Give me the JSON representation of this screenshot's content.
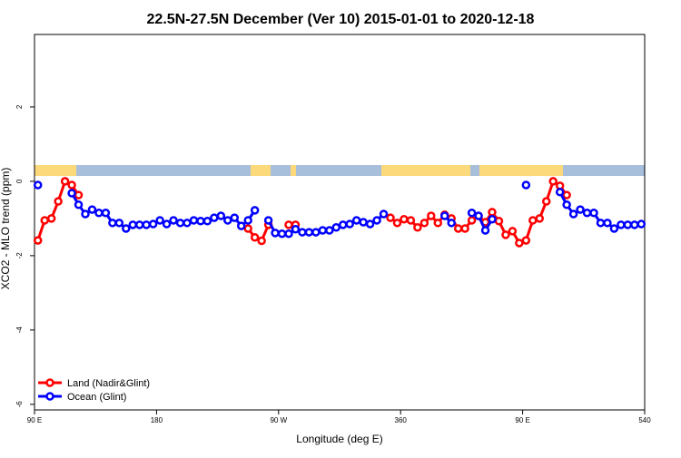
{
  "chart_data": {
    "type": "line",
    "title": "22.5N-27.5N December (Ver 10)   2015-01-01 to 2020-12-18",
    "x_label": "Longitude (deg E)",
    "y_label": "XCO2 - MLO trend (ppm)",
    "x": [
      92.5,
      97.5,
      102.5,
      107.5,
      112.5,
      117.5,
      122.5,
      127.5,
      132.5,
      137.5,
      142.5,
      147.5,
      152.5,
      157.5,
      162.5,
      167.5,
      172.5,
      177.5,
      182.5,
      187.5,
      192.5,
      197.5,
      202.5,
      207.5,
      212.5,
      217.5,
      222.5,
      227.5,
      232.5,
      237.5,
      242.5,
      247.5,
      252.5,
      257.5,
      262.5,
      267.5,
      272.5,
      277.5,
      282.5,
      287.5,
      292.5,
      297.5,
      302.5,
      307.5,
      312.5,
      317.5,
      322.5,
      327.5,
      332.5,
      337.5,
      342.5,
      347.5,
      352.5,
      357.5,
      362.5,
      367.5,
      372.5,
      377.5,
      382.5,
      387.5,
      392.5,
      397.5,
      402.5,
      407.5,
      412.5,
      417.5,
      422.5,
      427.5,
      432.5,
      437.5,
      442.5,
      447.5,
      452.5,
      457.5,
      462.5,
      467.5,
      472.5,
      477.5,
      482.5,
      487.5,
      492.5,
      497.5,
      502.5,
      507.5,
      512.5,
      517.5,
      522.5,
      527.5,
      532.5,
      537.5
    ],
    "series": [
      {
        "name": "Land (Nadir&Glint)",
        "color": "#ff0000",
        "values": [
          -1.59,
          -1.05,
          -1.0,
          -0.54,
          0.0,
          -0.1,
          -0.37,
          null,
          null,
          null,
          null,
          null,
          null,
          null,
          null,
          null,
          null,
          null,
          null,
          null,
          null,
          null,
          null,
          null,
          null,
          null,
          null,
          null,
          null,
          null,
          null,
          -1.27,
          -1.51,
          -1.6,
          -1.17,
          null,
          null,
          -1.17,
          -1.17,
          null,
          null,
          null,
          null,
          null,
          null,
          null,
          null,
          null,
          null,
          null,
          null,
          null,
          -0.98,
          -1.12,
          -1.02,
          -1.05,
          -1.24,
          -1.12,
          -0.93,
          -1.12,
          -0.9,
          -1.0,
          -1.27,
          -1.27,
          -1.05,
          -0.93,
          -1.1,
          -0.83,
          -1.07,
          -1.44,
          -1.34,
          -1.66,
          -1.59,
          -1.05,
          -1.0,
          -0.54,
          0.0,
          -0.12,
          -0.37,
          null,
          null,
          null,
          null,
          null,
          null,
          null,
          null,
          null,
          null,
          null
        ]
      },
      {
        "name": "Ocean (Glint)",
        "color": "#0000ff",
        "values": [
          -0.1,
          null,
          null,
          null,
          null,
          -0.32,
          -0.63,
          -0.88,
          -0.76,
          -0.85,
          -0.85,
          -1.12,
          -1.12,
          -1.27,
          -1.17,
          -1.17,
          -1.17,
          -1.15,
          -1.05,
          -1.15,
          -1.05,
          -1.12,
          -1.12,
          -1.05,
          -1.07,
          -1.07,
          -0.98,
          -0.93,
          -1.05,
          -0.98,
          -1.2,
          -1.05,
          -0.78,
          null,
          -1.05,
          -1.39,
          -1.41,
          -1.41,
          -1.29,
          -1.37,
          -1.37,
          -1.37,
          -1.32,
          -1.32,
          -1.24,
          -1.17,
          -1.15,
          -1.05,
          -1.1,
          -1.15,
          -1.05,
          -0.88,
          null,
          null,
          null,
          null,
          null,
          null,
          null,
          null,
          -0.93,
          -1.12,
          null,
          null,
          -0.85,
          -0.93,
          -1.32,
          -1.02,
          null,
          null,
          null,
          null,
          -0.1,
          null,
          null,
          null,
          null,
          -0.29,
          -0.63,
          -0.88,
          -0.76,
          -0.85,
          -0.85,
          -1.12,
          -1.12,
          -1.27,
          -1.17,
          -1.17,
          -1.17,
          -1.15
        ]
      }
    ],
    "xlim": [
      90,
      540
    ],
    "xticks": [
      {
        "value": 90,
        "label": "90 E"
      },
      180,
      {
        "value": 270,
        "label": "90 W"
      },
      360,
      {
        "value": 450,
        "label": "90 E"
      },
      540
    ],
    "ylim": [
      -6.15,
      3.95
    ],
    "yticks": [
      -6,
      -4,
      -2,
      0,
      2
    ],
    "legend": "bottom-left"
  }
}
